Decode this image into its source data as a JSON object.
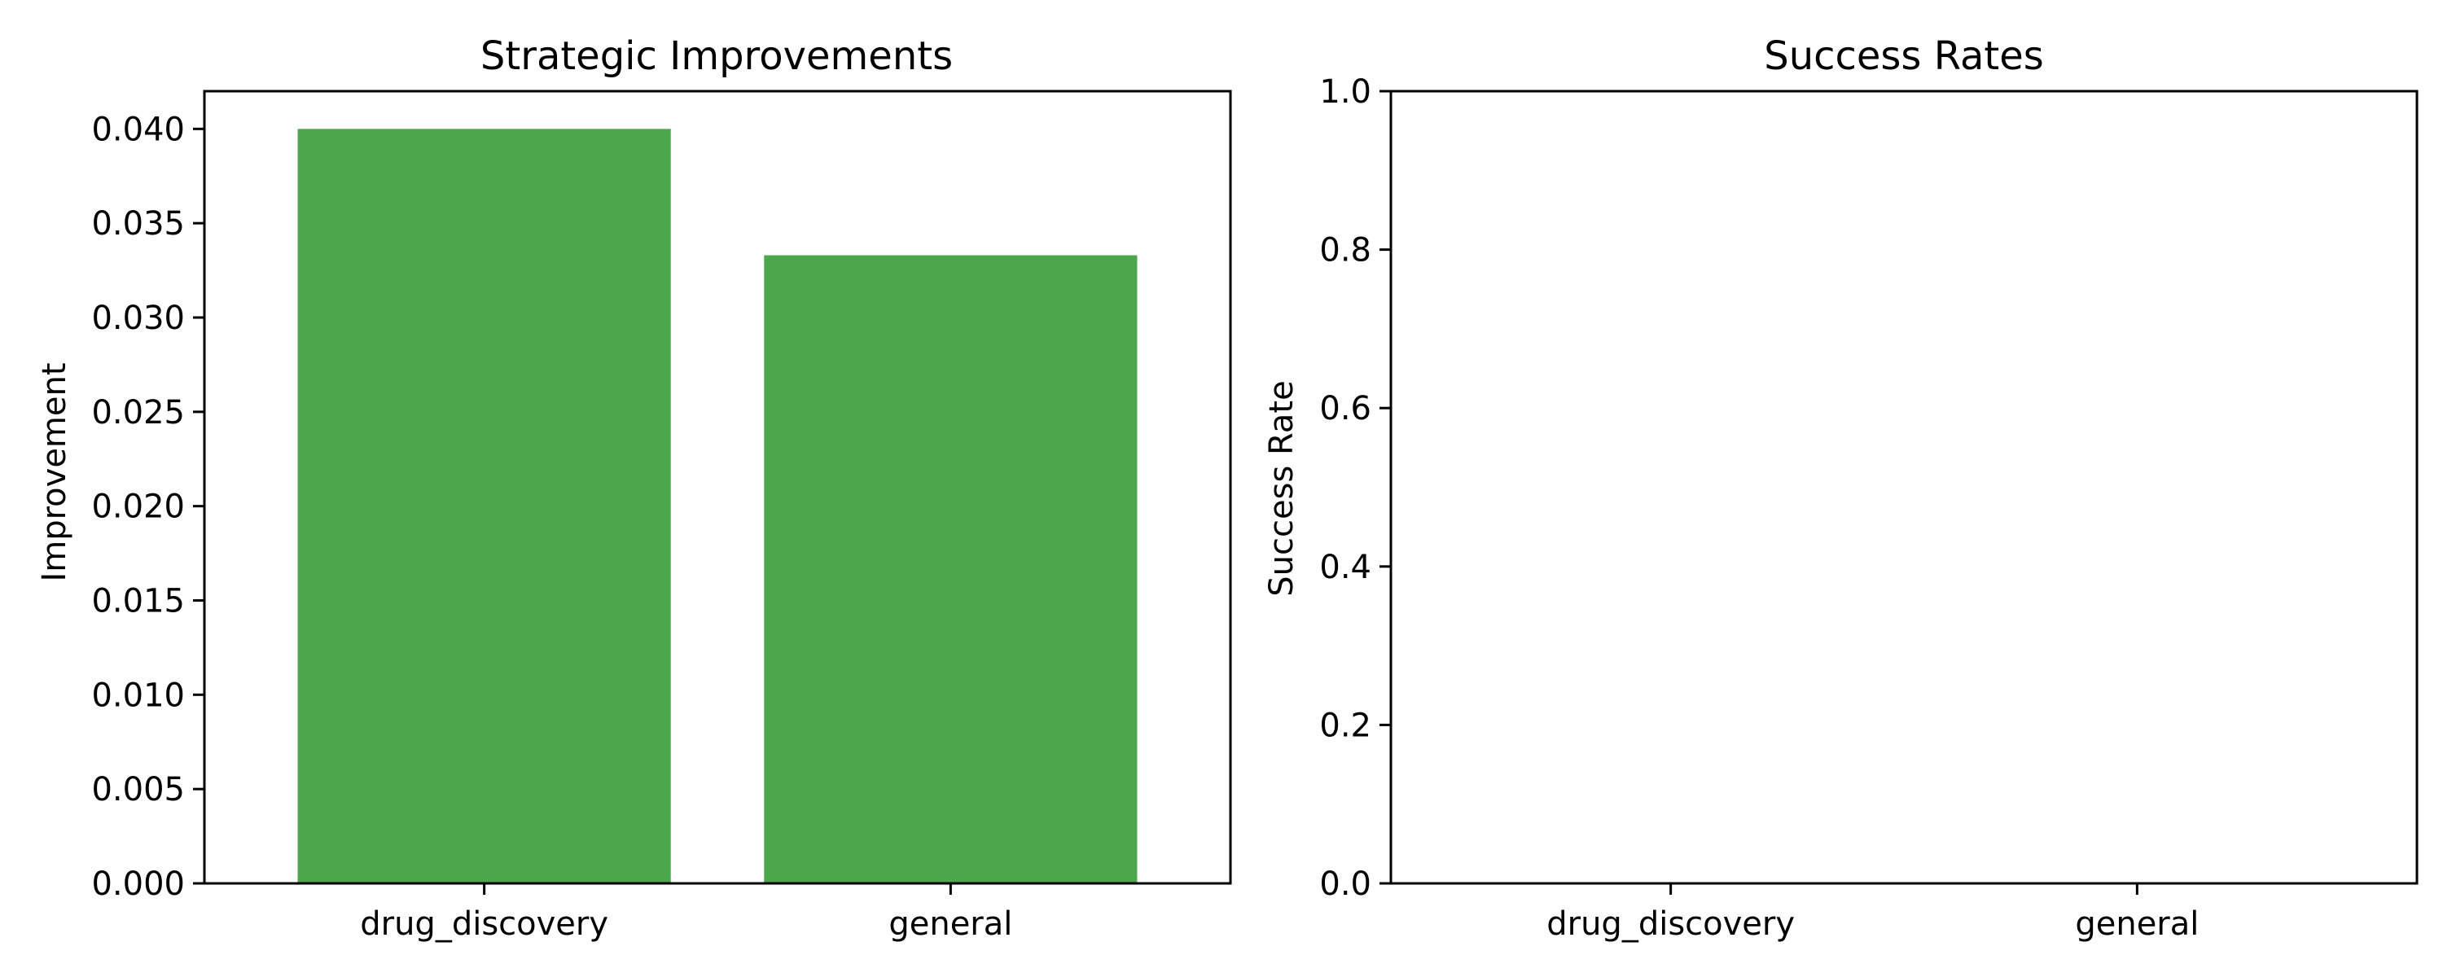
{
  "chart_data": [
    {
      "type": "bar",
      "title": "Strategic Improvements",
      "xlabel": "",
      "ylabel": "Improvement",
      "categories": [
        "drug_discovery",
        "general"
      ],
      "values": [
        0.04,
        0.0333
      ],
      "ylim": [
        0,
        0.042
      ],
      "yticks": [
        "0.000",
        "0.005",
        "0.010",
        "0.015",
        "0.020",
        "0.025",
        "0.030",
        "0.035",
        "0.040"
      ],
      "bar_color": "#4ca64c",
      "grid": false
    },
    {
      "type": "bar",
      "title": "Success Rates",
      "xlabel": "",
      "ylabel": "Success Rate",
      "categories": [
        "drug_discovery",
        "general"
      ],
      "values": [
        0,
        0
      ],
      "ylim": [
        0,
        1.0
      ],
      "yticks": [
        "0.0",
        "0.2",
        "0.4",
        "0.6",
        "0.8",
        "1.0"
      ],
      "bar_color": "#4ca64c",
      "grid": false
    }
  ]
}
